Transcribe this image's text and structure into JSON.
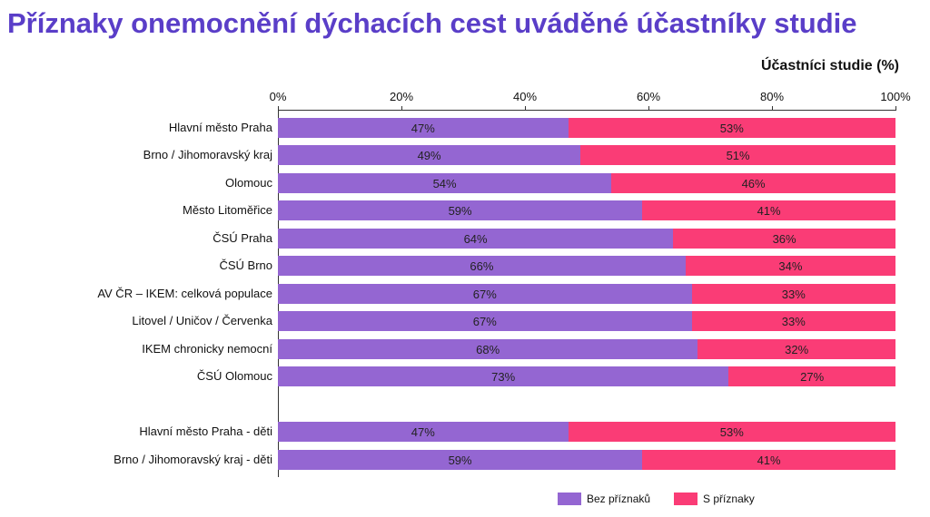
{
  "title": "Příznaky onemocnění dýchacích cest uváděné účastníky studie",
  "chart_data": {
    "type": "bar",
    "orientation": "horizontal",
    "stacked": true,
    "percent": true,
    "title": "Příznaky onemocnění dýchacích cest uváděné účastníky studie",
    "xlabel": "Účastníci studie (%)",
    "xlim": [
      0,
      100
    ],
    "x_ticks": [
      "0%",
      "20%",
      "40%",
      "60%",
      "80%",
      "100%"
    ],
    "categories": [
      "Hlavní město Praha",
      "Brno / Jihomoravský kraj",
      "Olomouc",
      "Město Litoměřice",
      "ČSÚ Praha",
      "ČSÚ Brno",
      "AV ČR – IKEM: celková populace",
      "Litovel / Uničov / Červenka",
      "IKEM chronicky nemocní",
      "ČSÚ Olomouc",
      "Hlavní město Praha - děti",
      "Brno / Jihomoravský kraj - děti"
    ],
    "series": [
      {
        "name": "Bez příznaků",
        "color": "#9466d2",
        "values": [
          47,
          49,
          54,
          59,
          64,
          66,
          67,
          67,
          68,
          73,
          47,
          59
        ]
      },
      {
        "name": "S příznaky",
        "color": "#fa3c76",
        "values": [
          53,
          51,
          46,
          41,
          36,
          34,
          33,
          33,
          32,
          27,
          53,
          41
        ]
      }
    ],
    "legend": "bottom-right",
    "grid": false
  }
}
